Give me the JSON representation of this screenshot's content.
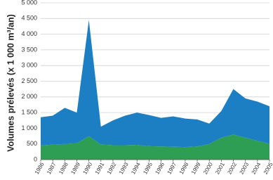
{
  "chart_data": {
    "type": "stacked-area",
    "y_label": "Volumes prélevés (x 1 000 m³/an)",
    "x": [
      1986,
      1987,
      1988,
      1989,
      1990,
      1991,
      1992,
      1993,
      1994,
      1995,
      1996,
      1997,
      1998,
      1999,
      2000,
      2001,
      2002,
      2003,
      2004,
      2005
    ],
    "xlim": [
      1986,
      2005
    ],
    "xticks": [
      1986,
      1987,
      1988,
      1989,
      1990,
      1991,
      1992,
      1993,
      1994,
      1995,
      1996,
      1997,
      1998,
      1999,
      2000,
      2001,
      2002,
      2003,
      2004,
      2005
    ],
    "series": [
      {
        "color": "#2f9e55",
        "values": [
          450,
          480,
          500,
          520,
          750,
          480,
          460,
          460,
          470,
          430,
          420,
          410,
          400,
          420,
          500,
          700,
          800,
          700,
          600,
          500
        ]
      },
      {
        "color": "#1d7fc3",
        "values": [
          900,
          920,
          1150,
          980,
          3700,
          570,
          790,
          940,
          1030,
          990,
          910,
          970,
          910,
          860,
          650,
          850,
          1450,
          1250,
          1250,
          1200
        ]
      }
    ],
    "ylim": [
      0,
      5000
    ],
    "yticks": [
      0,
      500,
      {
        "value": 1000,
        "label": "1 000"
      },
      {
        "value": 1500,
        "label": "1 500"
      },
      {
        "value": 2000,
        "label": "2 000"
      },
      {
        "value": 2500,
        "label": "2 500"
      },
      {
        "value": 3000,
        "label": "3 000"
      },
      {
        "value": 3500,
        "label": "3 500"
      },
      {
        "value": 4000,
        "label": "4 000"
      },
      {
        "value": 4500,
        "label": "4 500"
      },
      {
        "value": 5000,
        "label": "5 000"
      }
    ],
    "grid": true
  }
}
